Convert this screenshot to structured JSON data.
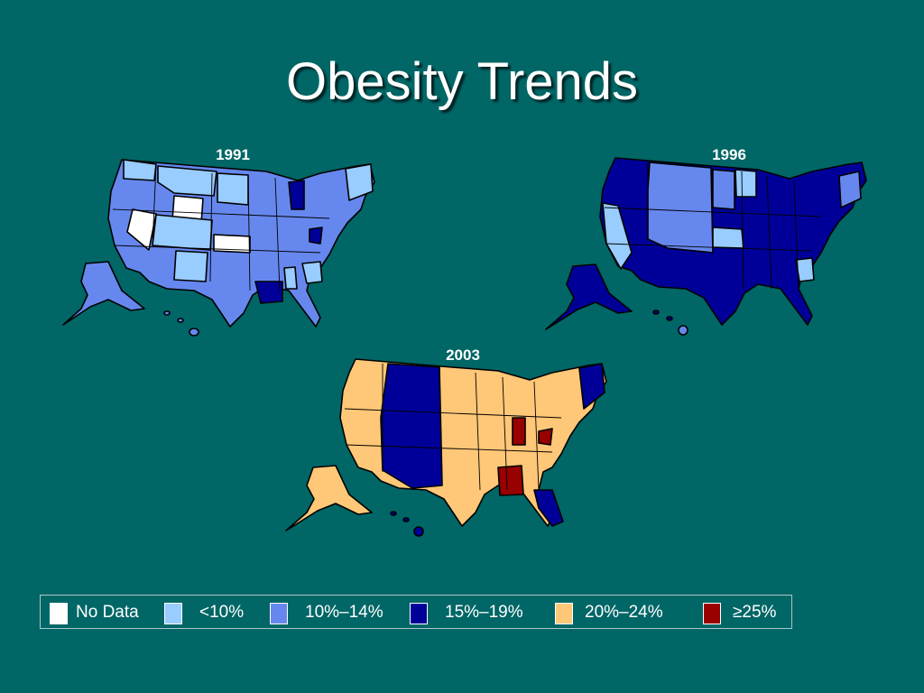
{
  "title": "Obesity Trends",
  "maps": [
    {
      "year": "1991",
      "base": "#6688ee",
      "lightest": "#99ccff",
      "darkest": "#000099",
      "nodata": "#ffffff"
    },
    {
      "year": "1996",
      "base": "#000099",
      "light": "#6688ee",
      "lighter": "#99ccff"
    },
    {
      "year": "2003",
      "base": "#ffc878",
      "dark": "#000099",
      "high": "#990000"
    }
  ],
  "legend": {
    "items": [
      {
        "label": "No Data",
        "color": "#ffffff"
      },
      {
        "label": "<10%",
        "color": "#99ccff"
      },
      {
        "label": "10%–14%",
        "color": "#6688ee"
      },
      {
        "label": "15%–19%",
        "color": "#000099"
      },
      {
        "label": "20%–24%",
        "color": "#ffc878"
      },
      {
        "label": "≥25%",
        "color": "#990000"
      }
    ]
  }
}
